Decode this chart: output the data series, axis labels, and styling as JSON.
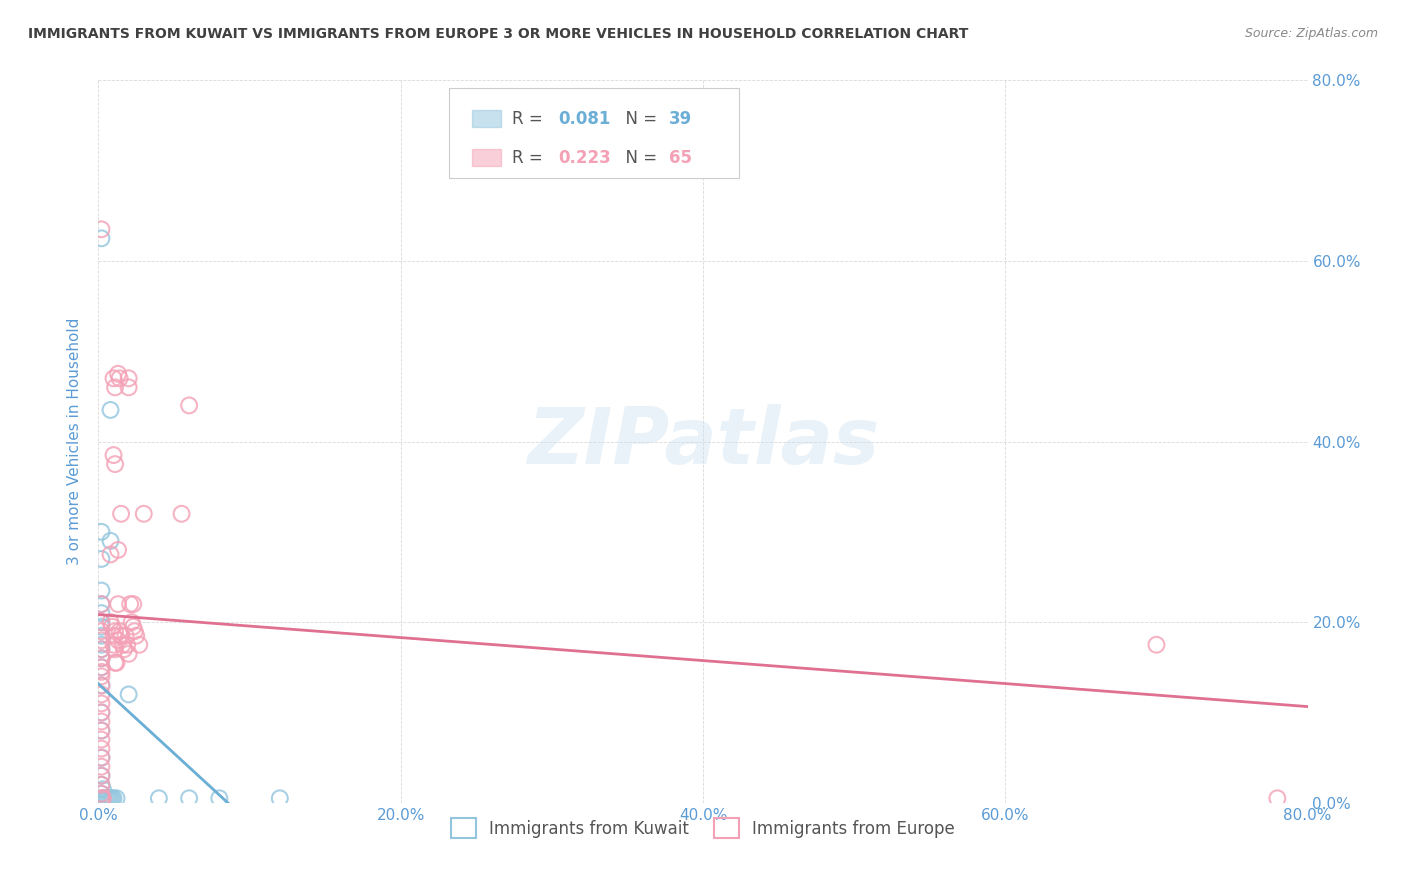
{
  "title": "IMMIGRANTS FROM KUWAIT VS IMMIGRANTS FROM EUROPE 3 OR MORE VEHICLES IN HOUSEHOLD CORRELATION CHART",
  "source": "Source: ZipAtlas.com",
  "ylabel": "3 or more Vehicles in Household",
  "xlim": [
    0.0,
    0.8
  ],
  "ylim": [
    0.0,
    0.8
  ],
  "xticks": [
    0.0,
    0.2,
    0.4,
    0.6,
    0.8
  ],
  "yticks": [
    0.0,
    0.2,
    0.4,
    0.6,
    0.8
  ],
  "xticklabels": [
    "0.0%",
    "20.0%",
    "40.0%",
    "60.0%",
    "80.0%"
  ],
  "yticklabels": [
    "0.0%",
    "20.0%",
    "40.0%",
    "60.0%",
    "80.0%"
  ],
  "kuwait_color": "#92c5de",
  "europe_color": "#f4a0b5",
  "kuwait_line_color": "#6baed6",
  "europe_line_color": "#e07090",
  "watermark": "ZIPatlas",
  "background_color": "#ffffff",
  "grid_color": "#d9d9d9",
  "axis_label_color": "#5b9bd5",
  "title_color": "#404040",
  "kuwait_points": [
    [
      0.002,
      0.625
    ],
    [
      0.008,
      0.435
    ],
    [
      0.008,
      0.29
    ],
    [
      0.02,
      0.12
    ],
    [
      0.002,
      0.3
    ],
    [
      0.002,
      0.27
    ],
    [
      0.002,
      0.235
    ],
    [
      0.002,
      0.22
    ],
    [
      0.002,
      0.21
    ],
    [
      0.002,
      0.2
    ],
    [
      0.002,
      0.195
    ],
    [
      0.002,
      0.185
    ],
    [
      0.002,
      0.175
    ],
    [
      0.002,
      0.17
    ],
    [
      0.002,
      0.16
    ],
    [
      0.002,
      0.15
    ],
    [
      0.002,
      0.13
    ],
    [
      0.002,
      0.1
    ],
    [
      0.002,
      0.08
    ],
    [
      0.002,
      0.05
    ],
    [
      0.002,
      0.03
    ],
    [
      0.002,
      0.02
    ],
    [
      0.002,
      0.01
    ],
    [
      0.002,
      0.005
    ],
    [
      0.002,
      0.003
    ],
    [
      0.003,
      0.015
    ],
    [
      0.003,
      0.005
    ],
    [
      0.004,
      0.005
    ],
    [
      0.005,
      0.005
    ],
    [
      0.006,
      0.005
    ],
    [
      0.007,
      0.005
    ],
    [
      0.008,
      0.005
    ],
    [
      0.009,
      0.005
    ],
    [
      0.01,
      0.005
    ],
    [
      0.012,
      0.005
    ],
    [
      0.04,
      0.005
    ],
    [
      0.06,
      0.005
    ],
    [
      0.08,
      0.005
    ],
    [
      0.12,
      0.005
    ]
  ],
  "europe_points": [
    [
      0.002,
      0.635
    ],
    [
      0.01,
      0.47
    ],
    [
      0.011,
      0.46
    ],
    [
      0.013,
      0.475
    ],
    [
      0.014,
      0.47
    ],
    [
      0.01,
      0.385
    ],
    [
      0.011,
      0.375
    ],
    [
      0.015,
      0.32
    ],
    [
      0.02,
      0.47
    ],
    [
      0.02,
      0.46
    ],
    [
      0.03,
      0.32
    ],
    [
      0.055,
      0.32
    ],
    [
      0.06,
      0.44
    ],
    [
      0.7,
      0.175
    ],
    [
      0.78,
      0.005
    ],
    [
      0.002,
      0.22
    ],
    [
      0.002,
      0.2
    ],
    [
      0.002,
      0.19
    ],
    [
      0.002,
      0.18
    ],
    [
      0.002,
      0.17
    ],
    [
      0.002,
      0.16
    ],
    [
      0.002,
      0.15
    ],
    [
      0.002,
      0.145
    ],
    [
      0.002,
      0.14
    ],
    [
      0.002,
      0.13
    ],
    [
      0.002,
      0.12
    ],
    [
      0.002,
      0.11
    ],
    [
      0.002,
      0.1
    ],
    [
      0.002,
      0.09
    ],
    [
      0.002,
      0.08
    ],
    [
      0.002,
      0.07
    ],
    [
      0.002,
      0.06
    ],
    [
      0.002,
      0.05
    ],
    [
      0.002,
      0.04
    ],
    [
      0.002,
      0.03
    ],
    [
      0.002,
      0.02
    ],
    [
      0.002,
      0.01
    ],
    [
      0.002,
      0.005
    ],
    [
      0.003,
      0.005
    ],
    [
      0.008,
      0.275
    ],
    [
      0.008,
      0.2
    ],
    [
      0.009,
      0.195
    ],
    [
      0.01,
      0.185
    ],
    [
      0.01,
      0.175
    ],
    [
      0.011,
      0.19
    ],
    [
      0.011,
      0.17
    ],
    [
      0.011,
      0.155
    ],
    [
      0.012,
      0.155
    ],
    [
      0.013,
      0.28
    ],
    [
      0.013,
      0.22
    ],
    [
      0.013,
      0.18
    ],
    [
      0.014,
      0.19
    ],
    [
      0.015,
      0.185
    ],
    [
      0.016,
      0.175
    ],
    [
      0.017,
      0.17
    ],
    [
      0.018,
      0.185
    ],
    [
      0.019,
      0.175
    ],
    [
      0.02,
      0.165
    ],
    [
      0.021,
      0.22
    ],
    [
      0.022,
      0.2
    ],
    [
      0.023,
      0.22
    ],
    [
      0.023,
      0.195
    ],
    [
      0.024,
      0.19
    ],
    [
      0.025,
      0.185
    ],
    [
      0.027,
      0.175
    ]
  ]
}
